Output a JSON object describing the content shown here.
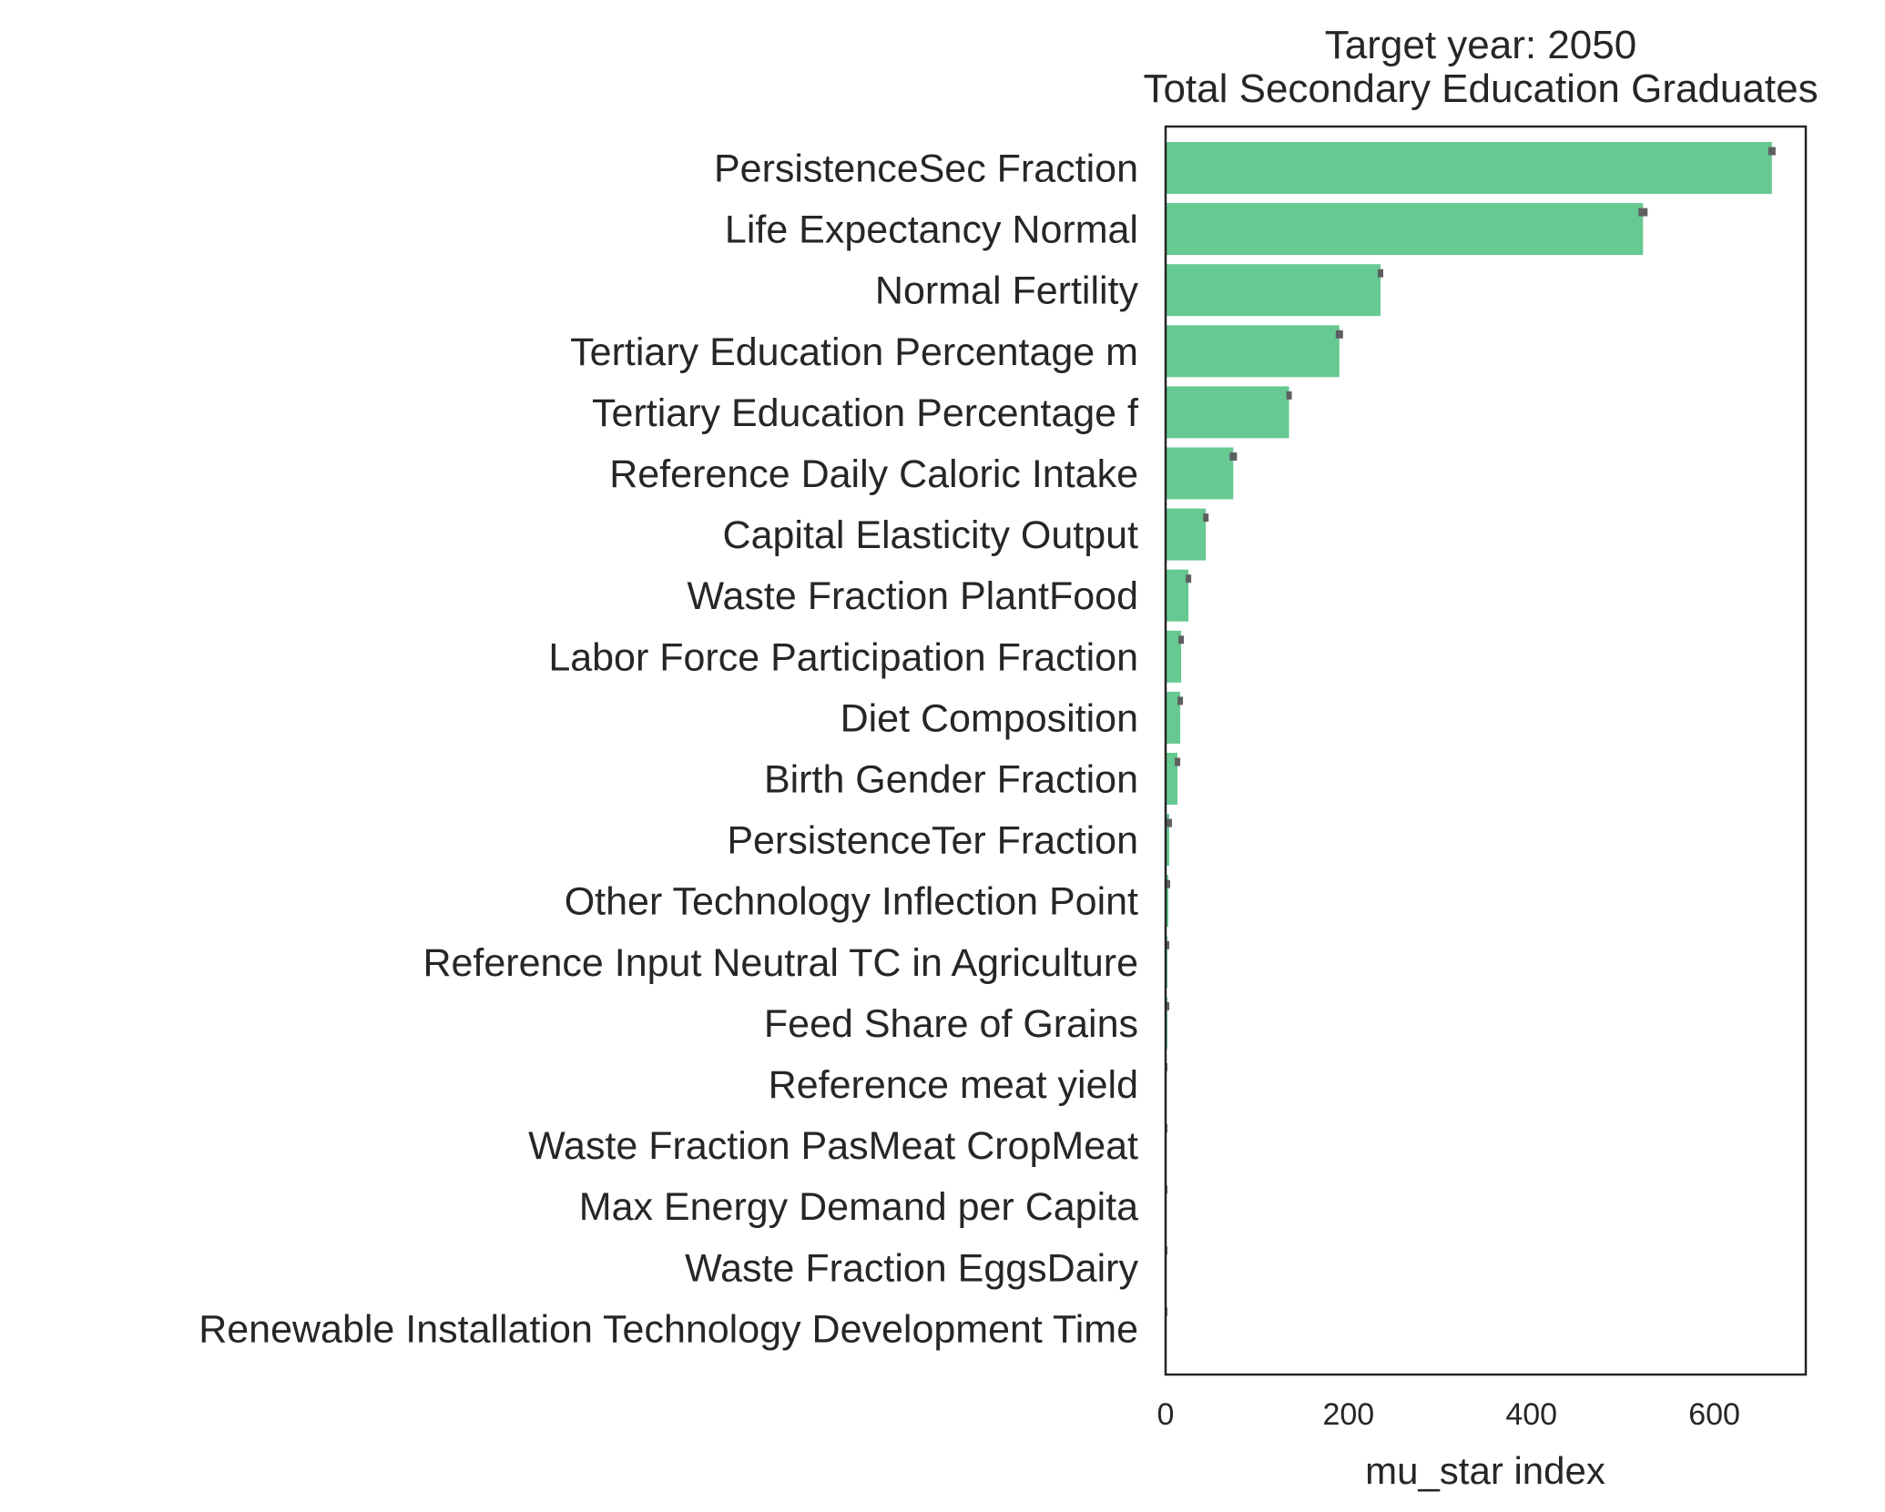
{
  "chart_data": {
    "type": "bar",
    "orientation": "horizontal",
    "title_line1": "Target year: 2050",
    "title_line2": "Total Secondary Education Graduates",
    "xlabel": "mu_star index",
    "ylabel": "",
    "xlim": [
      0,
      700
    ],
    "xticks": [
      "0",
      "200",
      "400",
      "600"
    ],
    "xtick_values": [
      0,
      200,
      400,
      600
    ],
    "grid": false,
    "bar_color": "#66c992",
    "errorbar_color": "#5f5f5f",
    "categories": [
      "PersistenceSec Fraction",
      "Life Expectancy Normal",
      "Normal Fertility",
      "Tertiary Education Percentage m",
      "Tertiary Education Percentage f",
      "Reference Daily Caloric Intake",
      "Capital Elasticity Output",
      "Waste Fraction PlantFood",
      "Labor Force Participation Fraction",
      "Diet Composition",
      "Birth Gender Fraction",
      "PersistenceTer Fraction",
      "Other Technology Inflection Point",
      "Reference Input Neutral TC in Agriculture",
      "Feed Share of Grains",
      "Reference meat yield",
      "Waste Fraction PasMeat CropMeat",
      "Max Energy Demand per Capita",
      "Waste Fraction EggsDairy",
      "Renewable Installation Technology Development Time"
    ],
    "values": [
      663,
      522,
      235,
      190,
      135,
      74,
      44,
      25,
      17,
      16,
      13,
      4,
      3,
      2,
      2,
      1,
      1,
      1,
      1,
      1
    ],
    "errors": [
      4,
      5,
      3,
      4,
      3,
      4,
      3,
      3,
      3,
      3,
      3,
      3,
      2,
      2,
      2,
      1,
      1,
      1,
      1,
      1
    ]
  }
}
